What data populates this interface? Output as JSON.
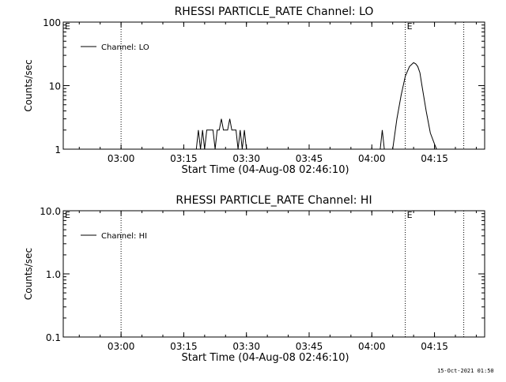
{
  "footer": {
    "timestamp": "15-Oct-2021 01:50"
  },
  "chart_data": [
    {
      "type": "line",
      "title": "RHESSI PARTICLE_RATE Channel: LO",
      "xlabel": "Start Time (04-Aug-08 02:46:10)",
      "ylabel": "Counts/sec",
      "yscale": "log",
      "ylim": [
        1,
        100
      ],
      "yticks": [
        {
          "value": 1,
          "label": "1"
        },
        {
          "value": 10,
          "label": "10"
        },
        {
          "value": 100,
          "label": "100"
        }
      ],
      "xlim": [
        "02:46:10",
        "04:27:00"
      ],
      "xticks": [
        "03:00",
        "03:15",
        "03:30",
        "03:45",
        "04:00",
        "04:15"
      ],
      "legend": {
        "position": "top-left",
        "entries": [
          "Channel: LO"
        ]
      },
      "eclipse_lines": {
        "times": [
          "03:00",
          "04:08",
          "04:22"
        ],
        "marker_label": "E",
        "marker_times": [
          "02:46",
          "04:08"
        ]
      },
      "series": [
        {
          "name": "Channel: LO",
          "x": [
            "03:18:00",
            "03:18:30",
            "03:19:00",
            "03:19:30",
            "03:20:00",
            "03:20:30",
            "03:21:00",
            "03:21:30",
            "03:22:00",
            "03:22:30",
            "03:23:00",
            "03:23:30",
            "03:24:00",
            "03:24:30",
            "03:25:00",
            "03:25:30",
            "03:26:00",
            "03:26:30",
            "03:27:00",
            "03:27:30",
            "03:28:00",
            "03:28:30",
            "03:29:00",
            "03:29:30",
            "03:30:00",
            "04:02:00",
            "04:02:30",
            "04:03:00",
            "04:05:00",
            "04:06:00",
            "04:07:00",
            "04:08:00",
            "04:09:00",
            "04:10:00",
            "04:10:30",
            "04:11:00",
            "04:11:30",
            "04:12:00",
            "04:13:00",
            "04:14:00",
            "04:15:00",
            "04:15:30",
            "04:16:00"
          ],
          "y": [
            1,
            2,
            1,
            2,
            1,
            2,
            2,
            2,
            2,
            1,
            2,
            2,
            3,
            2,
            2,
            2,
            3,
            2,
            2,
            2,
            1,
            2,
            1,
            2,
            1,
            1,
            2,
            1,
            1,
            3,
            7,
            14,
            20,
            23,
            22,
            20,
            16,
            10,
            4,
            1.8,
            1.2,
            1,
            1
          ]
        }
      ]
    },
    {
      "type": "line",
      "title": "RHESSI PARTICLE_RATE Channel: HI",
      "xlabel": "Start Time (04-Aug-08 02:46:10)",
      "ylabel": "Counts/sec",
      "yscale": "log",
      "ylim": [
        0.1,
        10
      ],
      "yticks": [
        {
          "value": 0.1,
          "label": "0.1"
        },
        {
          "value": 1,
          "label": "1.0"
        },
        {
          "value": 10,
          "label": "10.0"
        }
      ],
      "xlim": [
        "02:46:10",
        "04:27:00"
      ],
      "xticks": [
        "03:00",
        "03:15",
        "03:30",
        "03:45",
        "04:00",
        "04:15"
      ],
      "legend": {
        "position": "top-left",
        "entries": [
          "Channel: HI"
        ]
      },
      "eclipse_lines": {
        "times": [
          "03:00",
          "04:08",
          "04:22"
        ],
        "marker_label": "E",
        "marker_times": [
          "02:46",
          "04:08"
        ]
      },
      "series": [
        {
          "name": "Channel: HI",
          "x": [],
          "y": []
        }
      ]
    }
  ]
}
